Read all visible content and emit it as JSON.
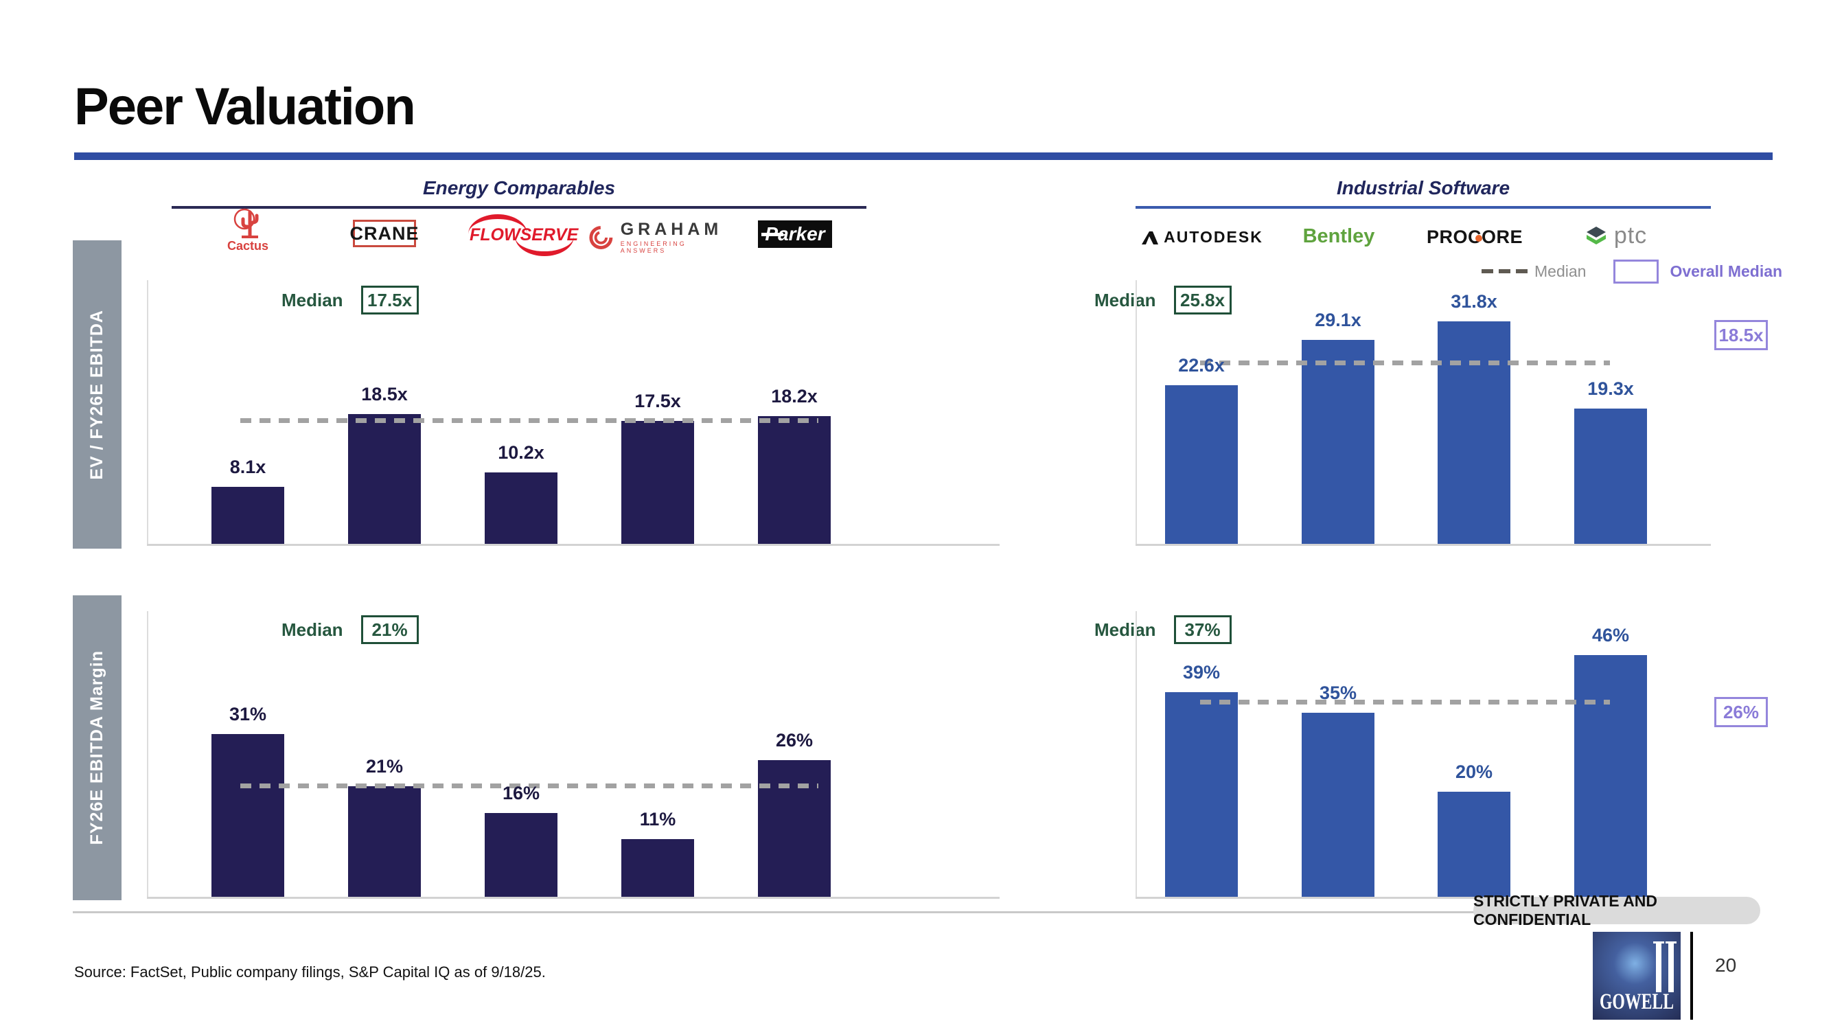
{
  "slide": {
    "title": "Peer Valuation",
    "source": "Source: FactSet, Public company filings, S&P Capital IQ as of 9/18/25.",
    "confidential": "STRICTLY PRIVATE AND CONFIDENTIAL",
    "page_number": "20",
    "logo_text": "GOWELL"
  },
  "rows": [
    {
      "label": "EV / FY26E EBITDA"
    },
    {
      "label": "FY26E EBITDA Margin"
    }
  ],
  "sections": [
    {
      "title": "Energy Comparables"
    },
    {
      "title": "Industrial Software"
    }
  ],
  "legend": {
    "median": "Median",
    "overall_median": "Overall Median"
  },
  "logos": {
    "cactus": "Cactus",
    "crane": "CRANE",
    "flowserve": "FLOWSERVE",
    "graham": "GRAHAM",
    "graham_sub": "ENGINEERING ANSWERS",
    "parker": "Parker",
    "autodesk": "AUTODESK",
    "bentley": "Bentley",
    "procore": "PROCORE",
    "ptc": "ptc"
  },
  "colors": {
    "accent_rule": "#2f4da3",
    "energy_bar": "#241e55",
    "software_bar": "#3457a7",
    "median_green": "#26573f",
    "overall_purple": "#8a7bd8",
    "dash_gray": "#a2a2a2",
    "sidebar_gray": "#8d97a2"
  },
  "chart_data": [
    {
      "id": "ev-energy",
      "type": "bar",
      "title": "EV / FY26E EBITDA — Energy Comparables",
      "categories": [
        "Cactus",
        "Crane",
        "Flowserve",
        "Graham",
        "Parker"
      ],
      "values": [
        8.1,
        18.5,
        10.2,
        17.5,
        18.2
      ],
      "value_labels": [
        "8.1x",
        "18.5x",
        "10.2x",
        "17.5x",
        "18.2x"
      ],
      "median": 17.5,
      "median_text": "17.5x",
      "ylim": [
        0,
        38
      ],
      "grid": false,
      "median_line": "dashed"
    },
    {
      "id": "ev-software",
      "type": "bar",
      "title": "EV / FY26E EBITDA — Industrial Software",
      "categories": [
        "Autodesk",
        "Bentley",
        "Procore",
        "PTC"
      ],
      "values": [
        22.6,
        29.1,
        31.8,
        19.3
      ],
      "value_labels": [
        "22.6x",
        "29.1x",
        "31.8x",
        "19.3x"
      ],
      "median": 25.8,
      "median_text": "25.8x",
      "overall_median": 18.5,
      "overall_median_text": "18.5x",
      "ylim": [
        0,
        38
      ],
      "grid": false,
      "median_line": "dashed"
    },
    {
      "id": "margin-energy",
      "type": "bar",
      "title": "FY26E EBITDA Margin — Energy Comparables",
      "categories": [
        "Cactus",
        "Crane",
        "Flowserve",
        "Graham",
        "Parker"
      ],
      "values": [
        31,
        21,
        16,
        11,
        26
      ],
      "value_labels": [
        "31%",
        "21%",
        "16%",
        "11%",
        "26%"
      ],
      "median": 21,
      "median_text": "21%",
      "ylim": [
        0,
        55
      ],
      "grid": false,
      "median_line": "dashed"
    },
    {
      "id": "margin-software",
      "type": "bar",
      "title": "FY26E EBITDA Margin — Industrial Software",
      "categories": [
        "Autodesk",
        "Bentley",
        "Procore",
        "PTC"
      ],
      "values": [
        39,
        35,
        20,
        46
      ],
      "value_labels": [
        "39%",
        "35%",
        "20%",
        "46%"
      ],
      "median": 37,
      "median_text": "37%",
      "overall_median": 26,
      "overall_median_text": "26%",
      "ylim": [
        0,
        55
      ],
      "grid": false,
      "median_line": "dashed"
    }
  ]
}
